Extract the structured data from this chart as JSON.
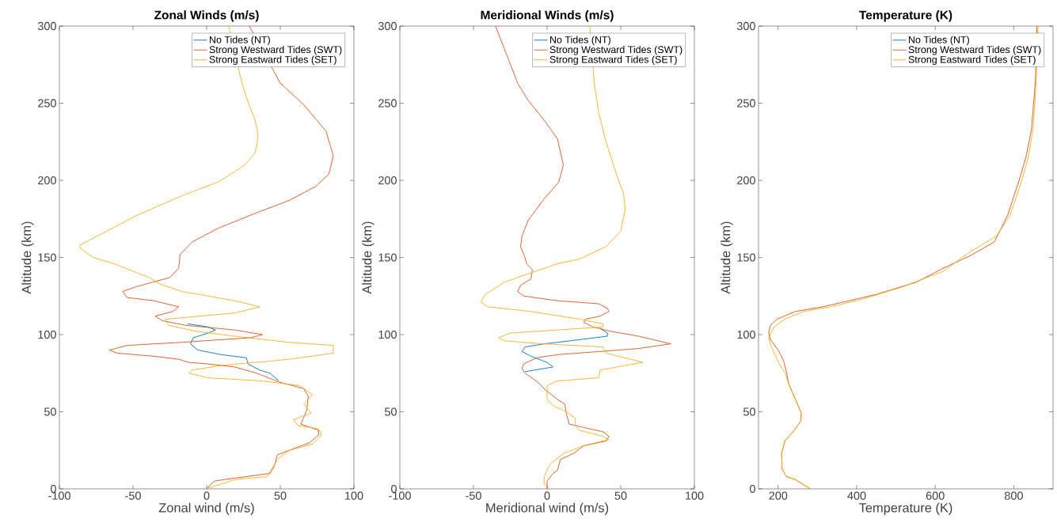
{
  "chart_data": [
    {
      "type": "line",
      "title": "Zonal Winds (m/s)",
      "xlabel": "Zonal wind (m/s)",
      "ylabel": "Altitude (km)",
      "xlim": [
        -100,
        100
      ],
      "ylim": [
        0,
        300
      ],
      "xticks": [
        -100,
        -50,
        0,
        50,
        100
      ],
      "yticks": [
        0,
        50,
        100,
        150,
        200,
        250,
        300
      ],
      "legend": "top right",
      "series": [
        {
          "name": "No Tides (NT)",
          "color": "#0072bd",
          "x": [
            -13,
            1,
            6,
            1,
            -9,
            -11,
            -6,
            10,
            27,
            28,
            36,
            43,
            49
          ],
          "values": [
            107,
            105,
            103,
            101,
            98,
            94,
            90,
            87,
            85,
            81,
            77,
            75,
            70
          ]
        },
        {
          "name": "Strong Westward Tides (SWT)",
          "color": "#d95319",
          "x": [
            29,
            50,
            66,
            81,
            86,
            83,
            74,
            56,
            34,
            8,
            -10,
            -18,
            -19,
            -25,
            -48,
            -57,
            -54,
            -36,
            -19,
            -23,
            -35,
            -30,
            -14,
            19,
            38,
            30,
            -17,
            -54,
            -66,
            -61,
            -36,
            -19,
            -12,
            1,
            19,
            34,
            50,
            66,
            69,
            68,
            64,
            76,
            76,
            70,
            56,
            48,
            46,
            43,
            19,
            5,
            0
          ],
          "values": [
            300,
            263,
            249,
            232,
            216,
            204,
            196,
            187,
            179,
            169,
            160,
            152,
            143,
            137,
            131,
            128,
            124,
            122,
            118,
            115,
            112,
            109,
            106,
            103,
            100,
            98,
            95,
            93,
            90,
            88,
            86,
            84,
            82,
            81,
            79,
            75,
            69,
            65,
            60,
            51,
            42,
            38,
            35,
            30,
            25,
            22,
            15,
            10,
            7,
            5,
            0
          ]
        },
        {
          "name": "Strong Eastward Tides (SET)",
          "color": "#edb120",
          "x": [
            15,
            24,
            28,
            33,
            35,
            33,
            26,
            8,
            -17,
            -48,
            -72,
            -86,
            -86,
            -77,
            -63,
            -39,
            -32,
            -17,
            19,
            36,
            19,
            -28,
            -26,
            -6,
            19,
            56,
            86,
            86,
            56,
            10,
            -10,
            -12,
            1,
            37,
            63,
            72,
            66,
            71,
            59,
            62,
            76,
            78,
            72,
            56,
            48,
            43,
            41,
            19,
            0
          ],
          "values": [
            300,
            263,
            251,
            239,
            228,
            218,
            210,
            199,
            190,
            177,
            165,
            158,
            156,
            150,
            146,
            137,
            133,
            128,
            122,
            118,
            114,
            110,
            106,
            102,
            99,
            95,
            93,
            88,
            84,
            80,
            77,
            75,
            72,
            70,
            67,
            61,
            55,
            49,
            45,
            41,
            39,
            35,
            29,
            25,
            19,
            11,
            8,
            6,
            0
          ]
        }
      ]
    },
    {
      "type": "line",
      "title": "Meridional Winds (m/s)",
      "xlabel": "Meridional wind (m/s)",
      "ylabel": "Altitude (km)",
      "xlim": [
        -100,
        100
      ],
      "ylim": [
        0,
        300
      ],
      "xticks": [
        -100,
        -50,
        0,
        50,
        100
      ],
      "yticks": [
        0,
        50,
        100,
        150,
        200,
        250,
        300
      ],
      "legend": "top right",
      "series": [
        {
          "name": "No Tides (NT)",
          "color": "#0072bd",
          "x": [
            -15,
            4,
            0,
            -11,
            -17,
            -15,
            -2,
            16,
            41,
            41,
            36
          ],
          "values": [
            76,
            79,
            82,
            86,
            89,
            92,
            94,
            96,
            99,
            101,
            104
          ]
        },
        {
          "name": "Strong Westward Tides (SWT)",
          "color": "#d95319",
          "x": [
            -35,
            -20,
            -13,
            -2,
            7,
            11,
            8,
            -2,
            -13,
            -17,
            -18,
            -15,
            -14,
            -10,
            -11,
            -18,
            -20,
            -16,
            7,
            35,
            41,
            42,
            36,
            26,
            25,
            31,
            44,
            62,
            84,
            62,
            35,
            7,
            -7,
            -16,
            -17,
            -15,
            -9,
            -5,
            -1,
            7,
            12,
            13,
            15,
            24,
            38,
            42,
            40,
            25,
            18,
            9,
            7,
            4,
            0,
            0
          ],
          "values": [
            300,
            263,
            252,
            239,
            227,
            210,
            199,
            188,
            174,
            164,
            157,
            150,
            146,
            142,
            136,
            132,
            128,
            125,
            122,
            120,
            117,
            115,
            112,
            110,
            108,
            105,
            102,
            99,
            94,
            91,
            89,
            87,
            85,
            81,
            78,
            75,
            71,
            68,
            64,
            58,
            55,
            49,
            42,
            40,
            37,
            34,
            31,
            28,
            23,
            19,
            12,
            10,
            5,
            0
          ]
        },
        {
          "name": "Strong Eastward Tides (SET)",
          "color": "#edb120",
          "x": [
            29,
            32,
            35,
            40,
            47,
            52,
            53,
            50,
            40,
            22,
            7,
            -11,
            -29,
            -42,
            -45,
            -40,
            -11,
            22,
            38,
            38,
            7,
            -25,
            -33,
            -29,
            -2,
            38,
            40,
            65,
            53,
            36,
            35,
            7,
            0,
            0,
            4,
            11,
            19,
            19,
            22,
            38,
            42,
            25,
            11,
            2,
            -2,
            -2,
            1
          ],
          "values": [
            300,
            263,
            244,
            225,
            204,
            191,
            181,
            167,
            157,
            149,
            146,
            140,
            134,
            126,
            121,
            118,
            115,
            110,
            107,
            105,
            103,
            101,
            98,
            96,
            94,
            92,
            88,
            82,
            80,
            77,
            72,
            70,
            67,
            58,
            54,
            51,
            46,
            41,
            38,
            34,
            32,
            28,
            23,
            16,
            8,
            3,
            1
          ]
        }
      ]
    },
    {
      "type": "line",
      "title": "Temperature (K)",
      "xlabel": "Temperature (K)",
      "ylabel": "Altitude (km)",
      "xlim": [
        150,
        900
      ],
      "ylim": [
        0,
        300
      ],
      "xticks": [
        200,
        400,
        600,
        800
      ],
      "yticks": [
        0,
        50,
        100,
        150,
        200,
        250,
        300
      ],
      "legend": "top right",
      "series": [
        {
          "name": "No Tides (NT)",
          "color": "#0072bd"
        },
        {
          "name": "Strong Westward Tides (SWT)",
          "color": "#d95319",
          "x": [
            859,
            855,
            845,
            831,
            811,
            784,
            750,
            688,
            620,
            552,
            449,
            381,
            313,
            244,
            197,
            180,
            176,
            180,
            200,
            214,
            221,
            227,
            244,
            259,
            258,
            238,
            217,
            209,
            210,
            221,
            244,
            282
          ],
          "values": [
            300,
            264,
            233,
            215,
            198,
            177,
            160,
            151,
            143,
            134,
            126,
            122,
            118,
            115,
            110,
            106,
            101,
            97,
            90,
            83,
            76,
            68,
            58,
            49,
            44,
            37,
            31,
            23,
            13,
            8,
            6,
            0
          ]
        },
        {
          "name": "Strong Eastward Tides (SET)",
          "color": "#edb120",
          "x": [
            862,
            857,
            849,
            837,
            818,
            790,
            756,
            685,
            620,
            517,
            415,
            333,
            265,
            217,
            190,
            176,
            183,
            203,
            218,
            227,
            244,
            259,
            258,
            238,
            217,
            209,
            210,
            221,
            244,
            282
          ],
          "values": [
            300,
            264,
            233,
            215,
            198,
            177,
            164,
            153,
            141,
            131,
            123,
            118,
            115,
            110,
            105,
            98,
            92,
            81,
            75,
            68,
            58,
            49,
            44,
            37,
            31,
            23,
            13,
            8,
            6,
            0
          ]
        }
      ]
    }
  ]
}
